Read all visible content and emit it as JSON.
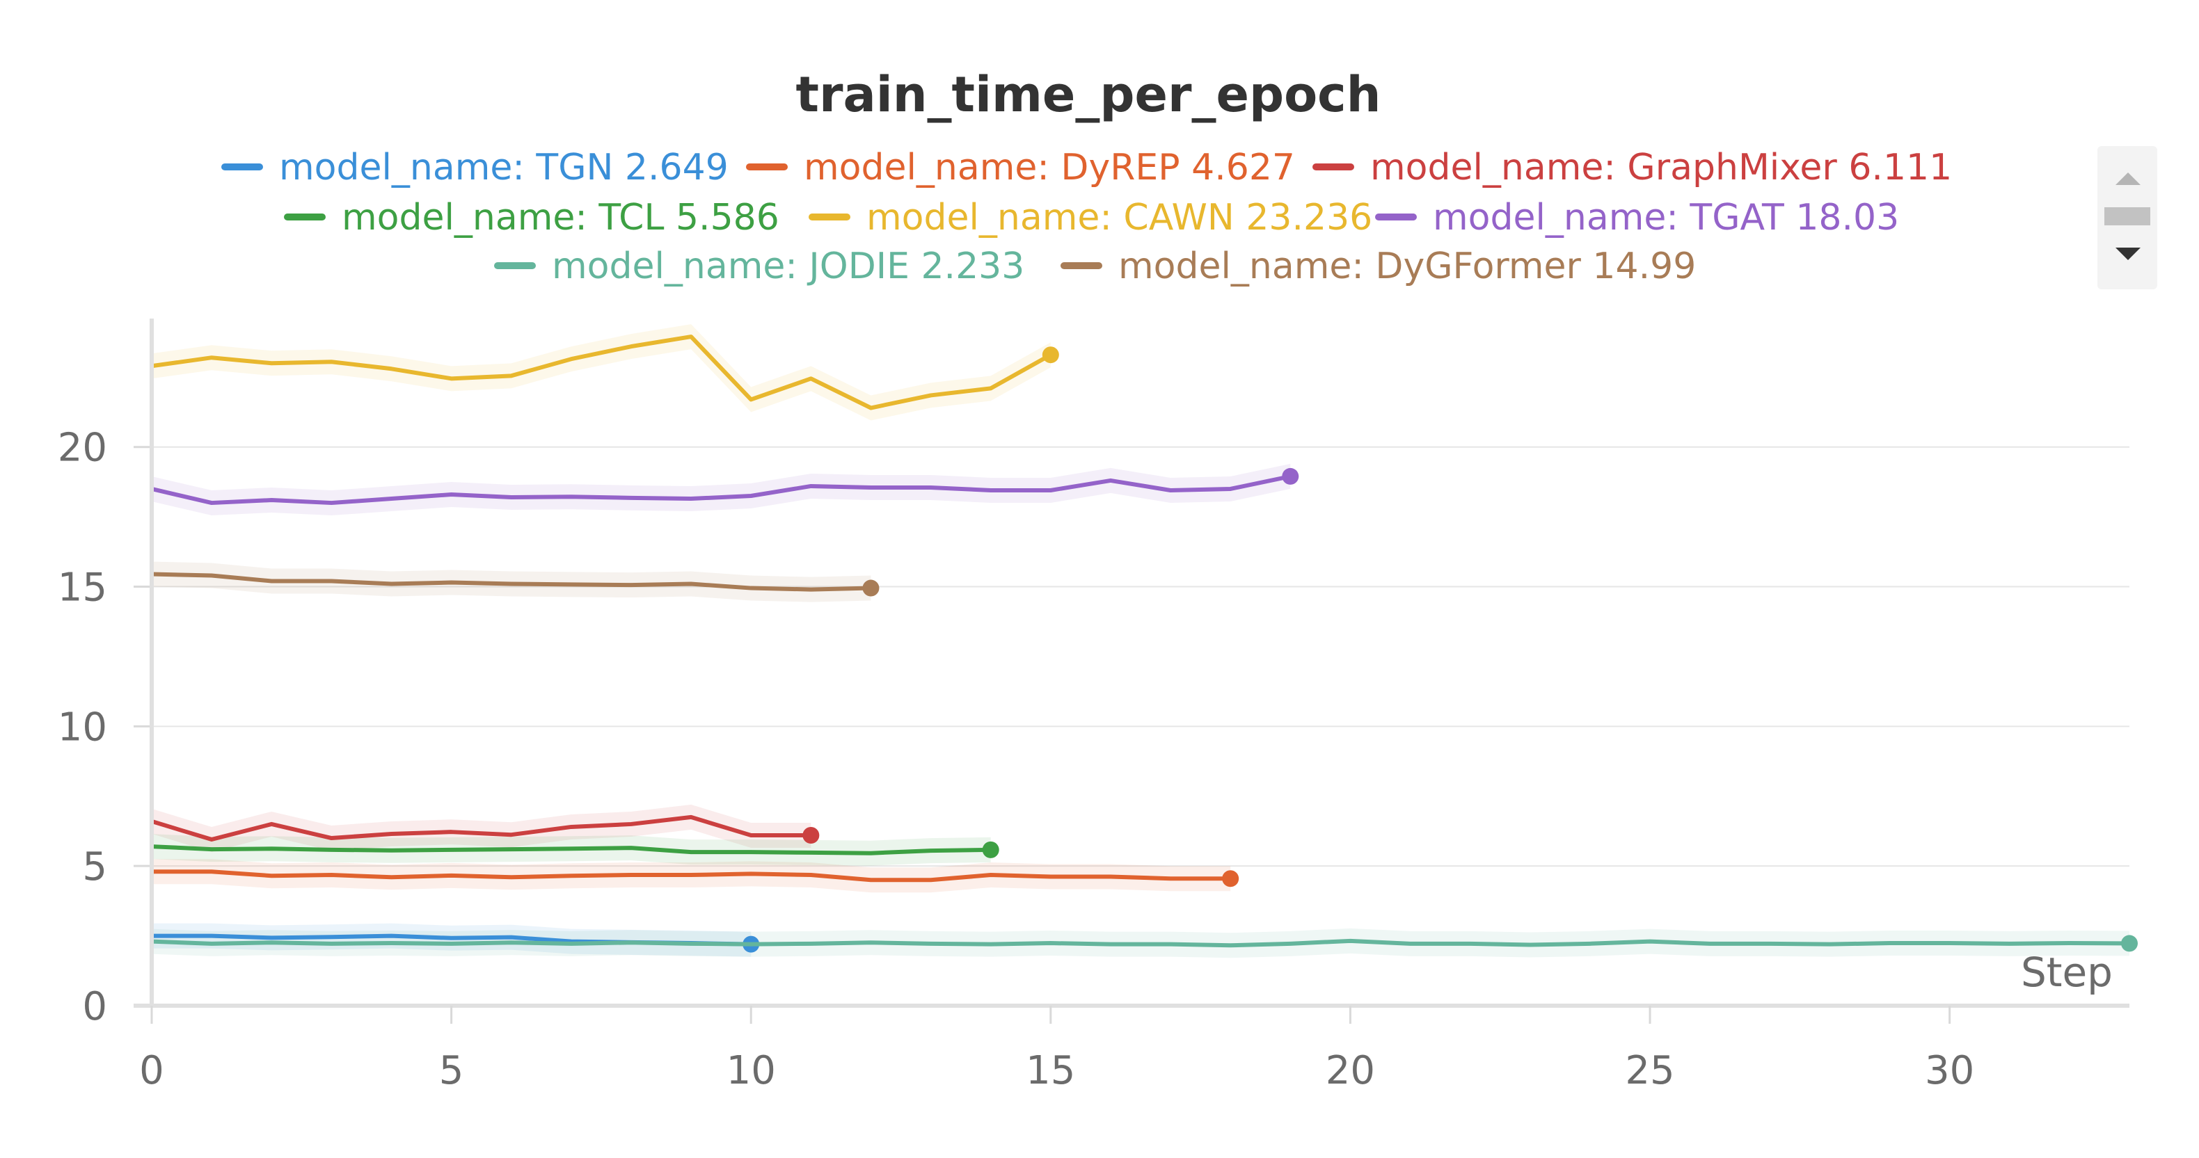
{
  "chart_data": {
    "type": "line",
    "title": "train_time_per_epoch",
    "xlabel": "Step",
    "ylabel": "",
    "xlim": [
      0,
      33
    ],
    "ylim": [
      0,
      24.5
    ],
    "xticks": [
      0,
      5,
      10,
      15,
      20,
      25,
      30
    ],
    "yticks": [
      0,
      5,
      10,
      15,
      20
    ],
    "grid": "horizontal",
    "legend_position": "top-center",
    "series": [
      {
        "name": "model_name: TGN 2.649",
        "color": "#3a8fd8",
        "x": [
          0,
          1,
          2,
          3,
          4,
          5,
          6,
          7,
          8,
          9,
          10
        ],
        "y": [
          2.5,
          2.5,
          2.43,
          2.46,
          2.5,
          2.42,
          2.45,
          2.3,
          2.27,
          2.24,
          2.2
        ]
      },
      {
        "name": "model_name: DyREP 4.627",
        "color": "#e0622e",
        "x": [
          0,
          1,
          2,
          3,
          4,
          5,
          6,
          7,
          8,
          9,
          10,
          11,
          12,
          13,
          14,
          15,
          16,
          17,
          18
        ],
        "y": [
          4.8,
          4.8,
          4.65,
          4.68,
          4.6,
          4.66,
          4.6,
          4.65,
          4.68,
          4.68,
          4.72,
          4.68,
          4.5,
          4.5,
          4.68,
          4.62,
          4.62,
          4.55,
          4.55
        ]
      },
      {
        "name": "model_name: GraphMixer 6.111",
        "color": "#cb4040",
        "x": [
          0,
          1,
          2,
          3,
          4,
          5,
          6,
          7,
          8,
          9,
          10,
          11
        ],
        "y": [
          6.6,
          5.95,
          6.5,
          6.0,
          6.15,
          6.22,
          6.12,
          6.4,
          6.5,
          6.75,
          6.1,
          6.1
        ]
      },
      {
        "name": "model_name: TCL 5.586",
        "color": "#3da043",
        "x": [
          0,
          1,
          2,
          3,
          4,
          5,
          6,
          7,
          8,
          9,
          10,
          11,
          12,
          13,
          14
        ],
        "y": [
          5.7,
          5.6,
          5.62,
          5.58,
          5.56,
          5.58,
          5.6,
          5.62,
          5.65,
          5.5,
          5.5,
          5.48,
          5.46,
          5.55,
          5.58
        ]
      },
      {
        "name": "model_name: CAWN 23.236",
        "color": "#e8b72e",
        "x": [
          0,
          1,
          2,
          3,
          4,
          5,
          6,
          7,
          8,
          9,
          10,
          11,
          12,
          13,
          14,
          15
        ],
        "y": [
          22.9,
          23.2,
          23.0,
          23.05,
          22.8,
          22.45,
          22.55,
          23.15,
          23.6,
          23.95,
          21.7,
          22.45,
          21.4,
          21.85,
          22.1,
          23.3
        ]
      },
      {
        "name": "model_name: TGAT 18.03",
        "color": "#9463c9",
        "x": [
          0,
          1,
          2,
          3,
          4,
          5,
          6,
          7,
          8,
          9,
          10,
          11,
          12,
          13,
          14,
          15,
          16,
          17,
          18,
          19
        ],
        "y": [
          18.5,
          18.0,
          18.1,
          18.0,
          18.15,
          18.3,
          18.2,
          18.22,
          18.18,
          18.15,
          18.25,
          18.6,
          18.55,
          18.55,
          18.45,
          18.45,
          18.8,
          18.45,
          18.5,
          18.95
        ]
      },
      {
        "name": "model_name: JODIE 2.233",
        "color": "#64b59c",
        "x": [
          0,
          1,
          2,
          3,
          4,
          5,
          6,
          7,
          8,
          9,
          10,
          11,
          12,
          13,
          14,
          15,
          16,
          17,
          18,
          19,
          20,
          21,
          22,
          23,
          24,
          25,
          26,
          27,
          28,
          29,
          30,
          31,
          32,
          33
        ],
        "y": [
          2.3,
          2.22,
          2.26,
          2.22,
          2.24,
          2.22,
          2.26,
          2.22,
          2.26,
          2.22,
          2.2,
          2.22,
          2.26,
          2.22,
          2.2,
          2.24,
          2.2,
          2.2,
          2.16,
          2.22,
          2.32,
          2.22,
          2.22,
          2.18,
          2.22,
          2.3,
          2.22,
          2.22,
          2.2,
          2.24,
          2.24,
          2.22,
          2.24,
          2.23
        ]
      },
      {
        "name": "model_name: DyGFormer 14.99",
        "color": "#a87c56",
        "x": [
          0,
          1,
          2,
          3,
          4,
          5,
          6,
          7,
          8,
          9,
          10,
          11,
          12
        ],
        "y": [
          15.45,
          15.4,
          15.2,
          15.2,
          15.1,
          15.15,
          15.1,
          15.08,
          15.06,
          15.1,
          14.95,
          14.9,
          14.95
        ]
      }
    ]
  }
}
